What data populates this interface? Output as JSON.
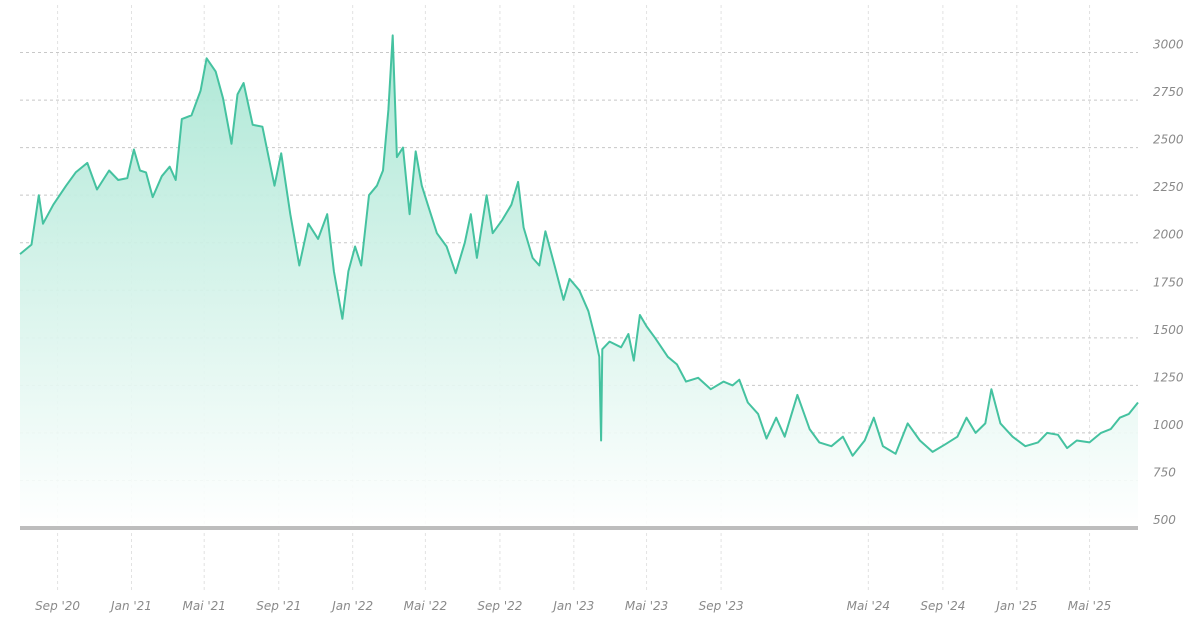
{
  "chart_data": {
    "type": "area",
    "title": "",
    "xlabel": "",
    "ylabel": "",
    "ylim": [
      500,
      3250
    ],
    "grid": true,
    "legend": "none",
    "colors": {
      "line": "#45c2a0",
      "fill_top": "#a8e6d3",
      "fill_bottom": "#ffffff",
      "axis": "#bdbdbd"
    },
    "y_ticks": [
      "500",
      "750",
      "1000",
      "1250",
      "1500",
      "1750",
      "2000",
      "2250",
      "2500",
      "2750",
      "3000"
    ],
    "x_ticks": [
      {
        "label": "Sep '20",
        "date": "2020-09-01"
      },
      {
        "label": "Jan '21",
        "date": "2021-01-01"
      },
      {
        "label": "Mai '21",
        "date": "2021-05-01"
      },
      {
        "label": "Sep '21",
        "date": "2021-09-01"
      },
      {
        "label": "Jan '22",
        "date": "2022-01-01"
      },
      {
        "label": "Mai '22",
        "date": "2022-05-01"
      },
      {
        "label": "Sep '22",
        "date": "2022-09-01"
      },
      {
        "label": "Jan '23",
        "date": "2023-01-01"
      },
      {
        "label": "Mai '23",
        "date": "2023-05-01"
      },
      {
        "label": "Sep '23",
        "date": "2023-09-01"
      },
      {
        "label": "Mai '24",
        "date": "2024-05-01"
      },
      {
        "label": "Sep '24",
        "date": "2024-09-01"
      },
      {
        "label": "Jan '25",
        "date": "2025-01-01"
      },
      {
        "label": "Mai '25",
        "date": "2025-05-01"
      }
    ],
    "series": [
      {
        "points": [
          [
            "2020-07-01",
            1940
          ],
          [
            "2020-07-20",
            1990
          ],
          [
            "2020-08-01",
            2250
          ],
          [
            "2020-08-08",
            2100
          ],
          [
            "2020-08-25",
            2200
          ],
          [
            "2020-09-15",
            2300
          ],
          [
            "2020-10-01",
            2370
          ],
          [
            "2020-10-20",
            2420
          ],
          [
            "2020-11-05",
            2280
          ],
          [
            "2020-11-25",
            2380
          ],
          [
            "2020-12-10",
            2330
          ],
          [
            "2020-12-25",
            2340
          ],
          [
            "2021-01-05",
            2490
          ],
          [
            "2021-01-15",
            2380
          ],
          [
            "2021-01-25",
            2370
          ],
          [
            "2021-02-05",
            2240
          ],
          [
            "2021-02-20",
            2350
          ],
          [
            "2021-03-05",
            2400
          ],
          [
            "2021-03-15",
            2330
          ],
          [
            "2021-03-25",
            2650
          ],
          [
            "2021-04-10",
            2670
          ],
          [
            "2021-04-25",
            2800
          ],
          [
            "2021-05-05",
            2970
          ],
          [
            "2021-05-20",
            2900
          ],
          [
            "2021-06-01",
            2760
          ],
          [
            "2021-06-15",
            2520
          ],
          [
            "2021-06-25",
            2780
          ],
          [
            "2021-07-05",
            2840
          ],
          [
            "2021-07-20",
            2620
          ],
          [
            "2021-08-05",
            2610
          ],
          [
            "2021-08-25",
            2300
          ],
          [
            "2021-09-05",
            2470
          ],
          [
            "2021-09-20",
            2150
          ],
          [
            "2021-10-05",
            1880
          ],
          [
            "2021-10-20",
            2100
          ],
          [
            "2021-11-05",
            2020
          ],
          [
            "2021-11-20",
            2150
          ],
          [
            "2021-12-01",
            1850
          ],
          [
            "2021-12-15",
            1600
          ],
          [
            "2021-12-25",
            1850
          ],
          [
            "2022-01-05",
            1980
          ],
          [
            "2022-01-15",
            1880
          ],
          [
            "2022-01-28",
            2250
          ],
          [
            "2022-02-10",
            2300
          ],
          [
            "2022-02-20",
            2380
          ],
          [
            "2022-03-01",
            2700
          ],
          [
            "2022-03-08",
            3090
          ],
          [
            "2022-03-15",
            2450
          ],
          [
            "2022-03-25",
            2500
          ],
          [
            "2022-04-05",
            2150
          ],
          [
            "2022-04-15",
            2480
          ],
          [
            "2022-04-25",
            2300
          ],
          [
            "2022-05-05",
            2200
          ],
          [
            "2022-05-20",
            2050
          ],
          [
            "2022-06-05",
            1980
          ],
          [
            "2022-06-20",
            1840
          ],
          [
            "2022-07-05",
            2000
          ],
          [
            "2022-07-15",
            2150
          ],
          [
            "2022-07-25",
            1920
          ],
          [
            "2022-08-10",
            2250
          ],
          [
            "2022-08-20",
            2050
          ],
          [
            "2022-09-05",
            2120
          ],
          [
            "2022-09-20",
            2200
          ],
          [
            "2022-10-01",
            2320
          ],
          [
            "2022-10-10",
            2080
          ],
          [
            "2022-10-25",
            1920
          ],
          [
            "2022-11-05",
            1880
          ],
          [
            "2022-11-15",
            2060
          ],
          [
            "2022-12-01",
            1870
          ],
          [
            "2022-12-15",
            1700
          ],
          [
            "2022-12-25",
            1810
          ],
          [
            "2023-01-10",
            1750
          ],
          [
            "2023-01-25",
            1640
          ],
          [
            "2023-02-05",
            1500
          ],
          [
            "2023-02-12",
            1400
          ],
          [
            "2023-02-15",
            960
          ],
          [
            "2023-02-17",
            1440
          ],
          [
            "2023-03-01",
            1480
          ],
          [
            "2023-03-20",
            1450
          ],
          [
            "2023-04-01",
            1520
          ],
          [
            "2023-04-10",
            1380
          ],
          [
            "2023-04-20",
            1620
          ],
          [
            "2023-05-01",
            1560
          ],
          [
            "2023-05-15",
            1500
          ],
          [
            "2023-06-05",
            1400
          ],
          [
            "2023-06-20",
            1360
          ],
          [
            "2023-07-05",
            1270
          ],
          [
            "2023-07-25",
            1290
          ],
          [
            "2023-08-15",
            1230
          ],
          [
            "2023-09-05",
            1270
          ],
          [
            "2023-09-20",
            1250
          ],
          [
            "2023-10-01",
            1280
          ],
          [
            "2023-10-15",
            1160
          ],
          [
            "2023-11-01",
            1100
          ],
          [
            "2023-11-15",
            970
          ],
          [
            "2023-12-01",
            1080
          ],
          [
            "2023-12-15",
            980
          ],
          [
            "2024-01-05",
            1200
          ],
          [
            "2024-01-25",
            1020
          ],
          [
            "2024-02-10",
            950
          ],
          [
            "2024-03-01",
            930
          ],
          [
            "2024-03-20",
            980
          ],
          [
            "2024-04-05",
            880
          ],
          [
            "2024-04-25",
            960
          ],
          [
            "2024-05-10",
            1080
          ],
          [
            "2024-05-25",
            930
          ],
          [
            "2024-06-15",
            890
          ],
          [
            "2024-07-05",
            1050
          ],
          [
            "2024-07-25",
            960
          ],
          [
            "2024-08-15",
            900
          ],
          [
            "2024-09-05",
            940
          ],
          [
            "2024-09-25",
            980
          ],
          [
            "2024-10-10",
            1080
          ],
          [
            "2024-10-25",
            1000
          ],
          [
            "2024-11-10",
            1050
          ],
          [
            "2024-11-20",
            1230
          ],
          [
            "2024-12-05",
            1050
          ],
          [
            "2024-12-25",
            980
          ],
          [
            "2025-01-15",
            930
          ],
          [
            "2025-02-05",
            950
          ],
          [
            "2025-02-20",
            1000
          ],
          [
            "2025-03-10",
            990
          ],
          [
            "2025-03-25",
            920
          ],
          [
            "2025-04-10",
            960
          ],
          [
            "2025-05-01",
            950
          ],
          [
            "2025-05-20",
            1000
          ],
          [
            "2025-06-05",
            1020
          ],
          [
            "2025-06-20",
            1080
          ],
          [
            "2025-07-05",
            1100
          ],
          [
            "2025-07-20",
            1160
          ]
        ]
      }
    ]
  }
}
